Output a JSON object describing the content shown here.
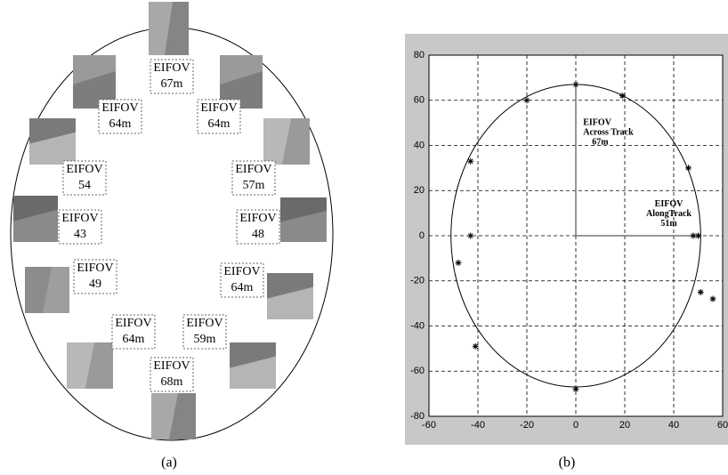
{
  "panel_a": {
    "labels": [
      [
        "EIFOV",
        "67m"
      ],
      [
        "EIFOV",
        "64m"
      ],
      [
        "EIFOV",
        "64m"
      ],
      [
        "EIFOV",
        "54"
      ],
      [
        "EIFOV",
        "57m"
      ],
      [
        "EIFOV",
        "43"
      ],
      [
        "EIFOV",
        "48"
      ],
      [
        "EIFOV",
        "49"
      ],
      [
        "EIFOV",
        "64m"
      ],
      [
        "EIFOV",
        "64m"
      ],
      [
        "EIFOV",
        "59m"
      ],
      [
        "EIFOV",
        "68m"
      ]
    ],
    "caption": "(a)"
  },
  "chart_data": {
    "type": "scatter",
    "caption": "(b)",
    "x": [
      0,
      19,
      -20,
      -43,
      46,
      -43,
      48,
      50,
      -48,
      51,
      56,
      -41,
      0
    ],
    "y": [
      67,
      62,
      60,
      33,
      30,
      0,
      0,
      0,
      -12,
      -25,
      -28,
      -49,
      -68
    ],
    "color": "#000000",
    "grid": true,
    "xlim": [
      -60,
      60
    ],
    "ylim": [
      -80,
      80
    ],
    "xticks": [
      -60,
      -40,
      -20,
      0,
      20,
      40,
      60
    ],
    "yticks": [
      -80,
      -60,
      -40,
      -20,
      0,
      20,
      40,
      60,
      80
    ],
    "ellipse_radii": [
      51,
      67
    ],
    "annotations": [
      [
        "EIFOV",
        "Across Track",
        "67m"
      ],
      [
        "EIFOV",
        "AlongTrack",
        "51m"
      ]
    ]
  }
}
